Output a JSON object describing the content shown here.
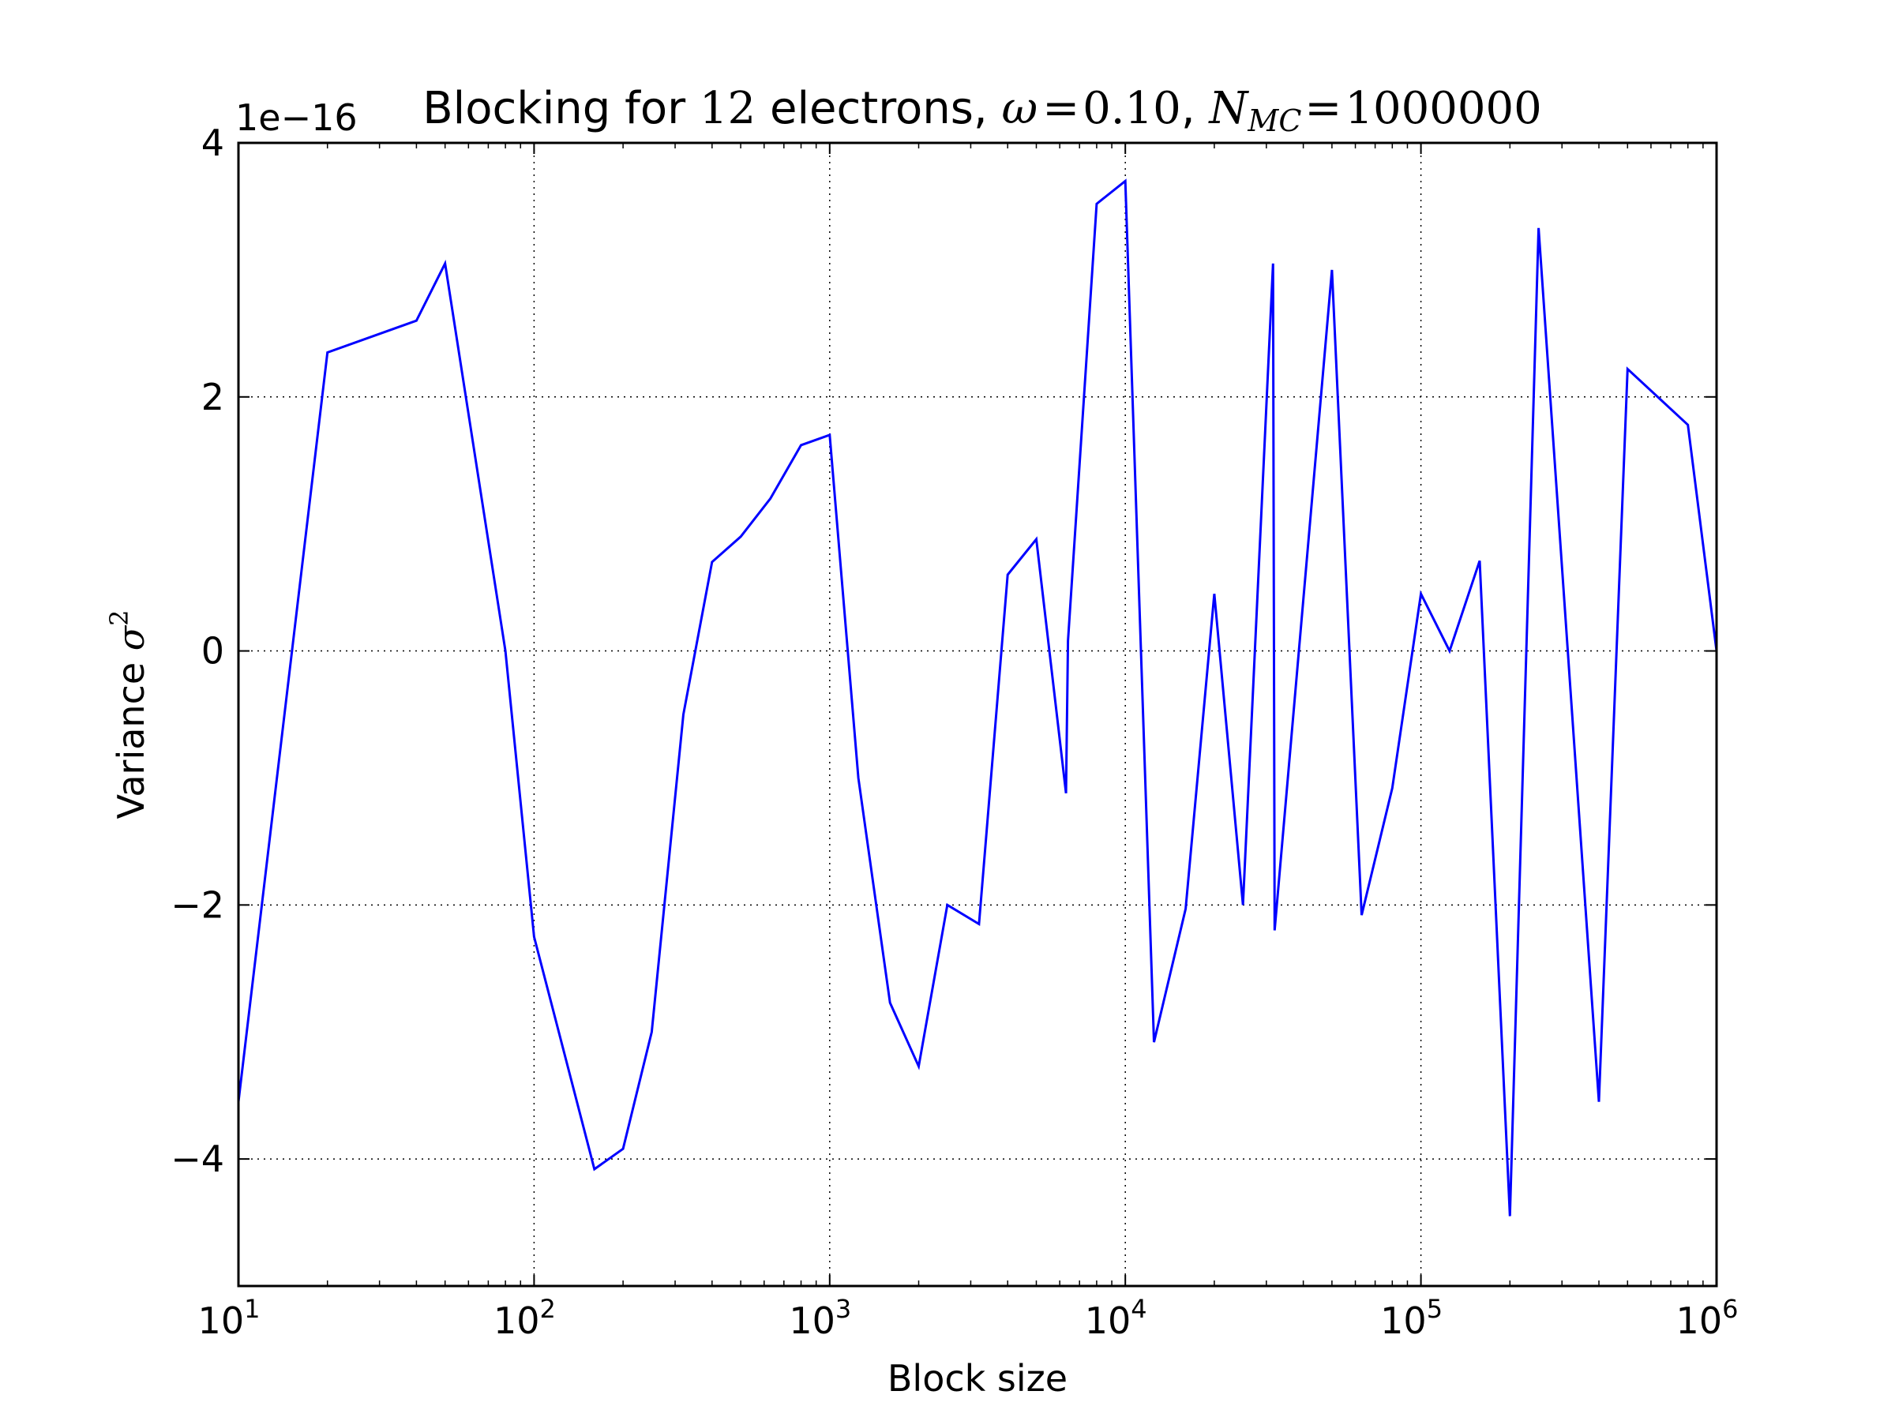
{
  "chart_data": {
    "type": "line",
    "title": {
      "prefix": "Blocking for ",
      "n": "12",
      "mid": " electrons, ",
      "omega_symbol": "ω",
      "omega_value": "0.10",
      "sep": ", ",
      "nmc_symbol": "N",
      "nmc_subscript": "MC",
      "nmc_value": "1000000",
      "eq": "="
    },
    "xlabel": "Block size",
    "ylabel": {
      "text": "Variance ",
      "symbol": "σ",
      "power": "2"
    },
    "x_scale": "log",
    "xlim": [
      10,
      1000000
    ],
    "ylim": [
      -5,
      4
    ],
    "y_multiplier_label": "1e−16",
    "x_ticks": [
      {
        "value": 10,
        "base": "10",
        "exp": "1"
      },
      {
        "value": 100,
        "base": "10",
        "exp": "2"
      },
      {
        "value": 1000,
        "base": "10",
        "exp": "3"
      },
      {
        "value": 10000,
        "base": "10",
        "exp": "4"
      },
      {
        "value": 100000,
        "base": "10",
        "exp": "5"
      },
      {
        "value": 1000000,
        "base": "10",
        "exp": "6"
      }
    ],
    "y_ticks": [
      {
        "value": 4,
        "label": "4"
      },
      {
        "value": 2,
        "label": "2"
      },
      {
        "value": 0,
        "label": "0"
      },
      {
        "value": -2,
        "label": "−2"
      },
      {
        "value": -4,
        "label": "−4"
      }
    ],
    "grid": true,
    "line_color": "#0000ff",
    "series": [
      {
        "x": [
          10,
          20,
          40,
          50,
          80,
          100,
          160,
          200,
          250,
          320,
          400,
          500,
          630,
          800,
          1000,
          1250,
          1600,
          2000,
          2500,
          3200,
          4000,
          5000,
          6300,
          6400,
          8000,
          10000,
          12500,
          16000,
          20000,
          25000,
          31600,
          32000,
          50000,
          63000,
          80000,
          100000,
          125000,
          158000,
          200000,
          250000,
          400000,
          500000,
          800000,
          1000000
        ],
        "y": [
          -3.55,
          2.35,
          2.6,
          3.05,
          0.0,
          -2.25,
          -4.08,
          -3.92,
          -3.0,
          -0.5,
          0.7,
          0.9,
          1.2,
          1.62,
          1.7,
          -1.0,
          -2.77,
          -3.27,
          -2.0,
          -2.15,
          0.6,
          0.88,
          -1.12,
          0.08,
          3.52,
          3.7,
          -3.08,
          -2.03,
          0.45,
          -2.0,
          3.05,
          -2.2,
          3.0,
          -2.08,
          -1.08,
          0.45,
          0.0,
          0.71,
          -4.45,
          3.33,
          -3.55,
          2.22,
          1.78,
          0.0
        ]
      }
    ]
  }
}
